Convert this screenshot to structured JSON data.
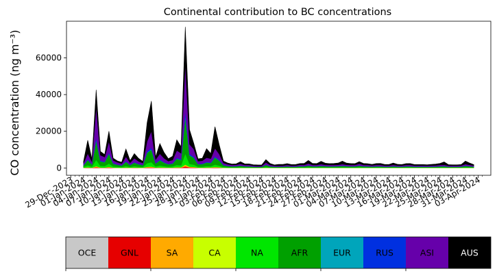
{
  "chart_data": {
    "type": "area",
    "stacked": true,
    "title": "Continental contribution to BC concentrations",
    "ylabel": "CO concentration (ng m⁻³)",
    "xlabel": "",
    "ylim": [
      -4000,
      80000
    ],
    "xlim": [
      "2023-12-28",
      "2024-04-06"
    ],
    "x_tick_labels": [
      "29-Dec-2023",
      "01-Jan-2024",
      "04-Jan-2024",
      "07-Jan-2024",
      "10-Jan-2024",
      "13-Jan-2024",
      "16-Jan-2024",
      "19-Jan-2024",
      "22-Jan-2024",
      "25-Jan-2024",
      "28-Jan-2024",
      "31-Jan-2024",
      "03-Feb-2024",
      "06-Feb-2024",
      "09-Feb-2024",
      "12-Feb-2024",
      "15-Feb-2024",
      "18-Feb-2024",
      "21-Feb-2024",
      "24-Feb-2024",
      "27-Feb-2024",
      "01-Mar-2024",
      "04-Mar-2024",
      "07-Mar-2024",
      "10-Mar-2024",
      "13-Mar-2024",
      "16-Mar-2024",
      "19-Mar-2024",
      "22-Mar-2024",
      "25-Mar-2024",
      "28-Mar-2024",
      "31-Mar-2024",
      "03-Apr-2024"
    ],
    "y_ticks": [
      0,
      20000,
      40000,
      60000
    ],
    "y_tick_labels": [
      "0",
      "20000",
      "40000",
      "60000"
    ],
    "x": [
      "2024-01-01",
      "2024-01-02",
      "2024-01-03",
      "2024-01-04",
      "2024-01-05",
      "2024-01-06",
      "2024-01-07",
      "2024-01-08",
      "2024-01-09",
      "2024-01-10",
      "2024-01-11",
      "2024-01-12",
      "2024-01-13",
      "2024-01-14",
      "2024-01-15",
      "2024-01-16",
      "2024-01-17",
      "2024-01-18",
      "2024-01-19",
      "2024-01-20",
      "2024-01-21",
      "2024-01-22",
      "2024-01-23",
      "2024-01-24",
      "2024-01-25",
      "2024-01-26",
      "2024-01-27",
      "2024-01-28",
      "2024-01-29",
      "2024-01-30",
      "2024-01-31",
      "2024-02-01",
      "2024-02-02",
      "2024-02-03",
      "2024-02-04",
      "2024-02-05",
      "2024-02-06",
      "2024-02-07",
      "2024-02-08",
      "2024-02-09",
      "2024-02-10",
      "2024-02-11",
      "2024-02-12",
      "2024-02-13",
      "2024-02-14",
      "2024-02-15",
      "2024-02-16",
      "2024-02-17",
      "2024-02-18",
      "2024-02-19",
      "2024-02-20",
      "2024-02-21",
      "2024-02-22",
      "2024-02-23",
      "2024-02-24",
      "2024-02-25",
      "2024-02-26",
      "2024-02-27",
      "2024-02-28",
      "2024-02-29",
      "2024-03-01",
      "2024-03-02",
      "2024-03-03",
      "2024-03-04",
      "2024-03-05",
      "2024-03-06",
      "2024-03-07",
      "2024-03-08",
      "2024-03-09",
      "2024-03-10",
      "2024-03-11",
      "2024-03-12",
      "2024-03-13",
      "2024-03-14",
      "2024-03-15",
      "2024-03-16",
      "2024-03-17",
      "2024-03-18",
      "2024-03-19",
      "2024-03-20",
      "2024-03-21",
      "2024-03-22",
      "2024-03-23",
      "2024-03-24",
      "2024-03-25",
      "2024-03-26",
      "2024-03-27",
      "2024-03-28",
      "2024-03-29",
      "2024-03-30",
      "2024-03-31",
      "2024-04-01",
      "2024-04-02"
    ],
    "series": [
      {
        "name": "OCE",
        "color": "#c8c8c8",
        "values": [
          20,
          20,
          20,
          20,
          20,
          20,
          20,
          20,
          20,
          20,
          20,
          20,
          20,
          20,
          20,
          20,
          20,
          20,
          20,
          20,
          20,
          20,
          20,
          20,
          20,
          20,
          20,
          20,
          20,
          20,
          20,
          20,
          20,
          20,
          20,
          20,
          20,
          20,
          20,
          20,
          20,
          20,
          20,
          20,
          20,
          20,
          20,
          20,
          20,
          20,
          20,
          20,
          20,
          20,
          20,
          20,
          20,
          20,
          20,
          20,
          20,
          20,
          20,
          20,
          20,
          20,
          20,
          20,
          20,
          20,
          20,
          20,
          20,
          20,
          20,
          20,
          20,
          20,
          20,
          20,
          20,
          20,
          20,
          20,
          20,
          20,
          20,
          20,
          20,
          20,
          20,
          20,
          20
        ]
      },
      {
        "name": "GNL",
        "color": "#e60000",
        "values": [
          60,
          150,
          70,
          400,
          100,
          90,
          260,
          80,
          60,
          50,
          130,
          60,
          120,
          80,
          60,
          250,
          320,
          90,
          150,
          110,
          80,
          90,
          180,
          150,
          800,
          260,
          220,
          80,
          80,
          120,
          110,
          230,
          160,
          60,
          50,
          40,
          40,
          60,
          40,
          40,
          30,
          30,
          30,
          80,
          40,
          30,
          30,
          30,
          40,
          30,
          30,
          40,
          40,
          60,
          40,
          40,
          50,
          40,
          40,
          40,
          40,
          50,
          40,
          40,
          40,
          60,
          40,
          40,
          30,
          40,
          40,
          30,
          30,
          40,
          30,
          30,
          40,
          40,
          30,
          30,
          30,
          30,
          30,
          30,
          40,
          40,
          30,
          30,
          30,
          30,
          50,
          40,
          30
        ]
      },
      {
        "name": "SA",
        "color": "#ffaa00",
        "values": [
          80,
          180,
          90,
          500,
          120,
          110,
          300,
          100,
          80,
          60,
          150,
          80,
          140,
          100,
          80,
          300,
          380,
          110,
          180,
          130,
          100,
          110,
          220,
          180,
          900,
          320,
          260,
          100,
          100,
          140,
          130,
          270,
          190,
          80,
          60,
          50,
          50,
          70,
          50,
          50,
          40,
          40,
          40,
          90,
          50,
          40,
          40,
          40,
          50,
          40,
          40,
          50,
          50,
          70,
          50,
          50,
          60,
          50,
          50,
          50,
          50,
          60,
          50,
          50,
          50,
          70,
          50,
          50,
          40,
          50,
          50,
          40,
          40,
          50,
          40,
          40,
          50,
          50,
          40,
          40,
          40,
          40,
          40,
          40,
          50,
          50,
          40,
          40,
          40,
          40,
          60,
          50,
          40
        ]
      },
      {
        "name": "CA",
        "color": "#c8ff00",
        "values": [
          10,
          30,
          10,
          80,
          20,
          15,
          50,
          15,
          10,
          10,
          25,
          10,
          20,
          15,
          10,
          50,
          60,
          15,
          30,
          20,
          15,
          15,
          35,
          30,
          150,
          50,
          40,
          15,
          15,
          20,
          20,
          45,
          30,
          10,
          10,
          10,
          10,
          10,
          10,
          10,
          5,
          5,
          5,
          15,
          10,
          5,
          5,
          5,
          10,
          5,
          5,
          10,
          10,
          10,
          10,
          10,
          10,
          10,
          10,
          10,
          10,
          10,
          10,
          10,
          10,
          10,
          10,
          10,
          5,
          10,
          10,
          5,
          5,
          10,
          5,
          5,
          10,
          10,
          5,
          5,
          5,
          5,
          5,
          5,
          10,
          10,
          5,
          5,
          5,
          5,
          10,
          10,
          5
        ]
      },
      {
        "name": "NA",
        "color": "#00e600",
        "values": [
          400,
          1100,
          500,
          3500,
          900,
          800,
          1800,
          600,
          450,
          350,
          800,
          400,
          700,
          500,
          400,
          2000,
          2400,
          600,
          1000,
          700,
          500,
          600,
          1200,
          1000,
          6000,
          1600,
          1300,
          500,
          500,
          700,
          650,
          1300,
          900,
          350,
          250,
          200,
          220,
          280,
          200,
          200,
          150,
          140,
          140,
          380,
          200,
          150,
          150,
          150,
          200,
          150,
          160,
          220,
          200,
          300,
          200,
          200,
          260,
          210,
          200,
          200,
          220,
          260,
          220,
          200,
          200,
          280,
          200,
          200,
          170,
          200,
          200,
          160,
          160,
          210,
          170,
          160,
          200,
          200,
          160,
          160,
          160,
          150,
          160,
          170,
          200,
          220,
          150,
          150,
          150,
          160,
          260,
          210,
          160
        ]
      },
      {
        "name": "AFR",
        "color": "#00a000",
        "values": [
          900,
          2800,
          1200,
          10500,
          2400,
          2100,
          5200,
          1500,
          1100,
          850,
          2200,
          1000,
          1900,
          1300,
          950,
          5600,
          6800,
          1600,
          2800,
          1900,
          1300,
          1500,
          3400,
          2900,
          20000,
          4600,
          3700,
          1300,
          1400,
          2000,
          1800,
          3800,
          2700,
          950,
          700,
          550,
          600,
          780,
          550,
          550,
          420,
          380,
          380,
          1050,
          560,
          420,
          400,
          420,
          560,
          420,
          450,
          600,
          560,
          850,
          560,
          560,
          720,
          580,
          560,
          560,
          600,
          720,
          600,
          560,
          560,
          800,
          560,
          560,
          480,
          560,
          560,
          450,
          450,
          580,
          470,
          450,
          560,
          560,
          450,
          450,
          450,
          420,
          450,
          480,
          560,
          600,
          420,
          420,
          420,
          450,
          720,
          580,
          450
        ]
      },
      {
        "name": "EUR",
        "color": "#00a5bb",
        "values": [
          30,
          80,
          40,
          300,
          70,
          60,
          150,
          45,
          35,
          25,
          65,
          30,
          55,
          40,
          30,
          160,
          200,
          45,
          80,
          55,
          40,
          45,
          100,
          85,
          550,
          130,
          110,
          40,
          40,
          60,
          50,
          110,
          80,
          30,
          20,
          15,
          15,
          20,
          15,
          15,
          10,
          10,
          10,
          30,
          15,
          10,
          10,
          10,
          15,
          10,
          10,
          15,
          15,
          25,
          15,
          15,
          20,
          15,
          15,
          15,
          15,
          20,
          15,
          15,
          15,
          20,
          15,
          15,
          10,
          15,
          15,
          10,
          10,
          15,
          10,
          10,
          15,
          15,
          10,
          10,
          10,
          10,
          10,
          10,
          15,
          15,
          10,
          10,
          10,
          10,
          20,
          15,
          10
        ]
      },
      {
        "name": "RUS",
        "color": "#0030e0",
        "values": [
          120,
          350,
          150,
          1300,
          300,
          260,
          650,
          190,
          140,
          110,
          280,
          130,
          240,
          170,
          120,
          700,
          850,
          200,
          350,
          240,
          170,
          190,
          430,
          370,
          2500,
          580,
          460,
          170,
          180,
          250,
          230,
          480,
          340,
          120,
          90,
          70,
          75,
          100,
          70,
          70,
          55,
          50,
          50,
          130,
          70,
          55,
          50,
          55,
          70,
          55,
          55,
          75,
          70,
          110,
          70,
          70,
          90,
          75,
          70,
          70,
          75,
          90,
          75,
          70,
          70,
          100,
          70,
          70,
          60,
          70,
          70,
          55,
          55,
          75,
          60,
          55,
          70,
          70,
          55,
          55,
          55,
          55,
          55,
          60,
          70,
          75,
          55,
          55,
          55,
          55,
          90,
          75,
          55
        ]
      },
      {
        "name": "ASI",
        "color": "#6600aa",
        "values": [
          900,
          3200,
          1300,
          17000,
          3000,
          2500,
          6000,
          1600,
          1200,
          900,
          2500,
          1100,
          2100,
          1400,
          1000,
          5500,
          9000,
          1900,
          3200,
          2100,
          1500,
          1800,
          4000,
          3300,
          26000,
          5300,
          4200,
          1500,
          1600,
          2300,
          2100,
          4500,
          3200,
          1100,
          800,
          650,
          700,
          900,
          650,
          650,
          500,
          450,
          450,
          1200,
          650,
          500,
          480,
          500,
          650,
          500,
          520,
          700,
          650,
          1000,
          650,
          650,
          850,
          680,
          650,
          650,
          700,
          850,
          700,
          650,
          650,
          950,
          650,
          650,
          560,
          650,
          650,
          520,
          520,
          680,
          550,
          520,
          650,
          650,
          520,
          520,
          520,
          500,
          520,
          560,
          650,
          700,
          500,
          500,
          500,
          520,
          850,
          680,
          520
        ]
      },
      {
        "name": "AUS",
        "color": "#000000",
        "values": [
          980,
          7200,
          1540,
          9010,
          2100,
          1370,
          5600,
          1170,
          735,
          745,
          4195,
          1190,
          2525,
          1585,
          870,
          10090,
          16495,
          1440,
          5500,
          3155,
          1295,
          2045,
          5795,
          3575,
          20000,
          7950,
          3075,
          1270,
          1345,
          4900,
          2760,
          11745,
          5005,
          1025,
          720,
          560,
          525,
          1190,
          645,
          645,
          550,
          535,
          500,
          1545,
          795,
          435,
          805,
          690,
          755,
          640,
          625,
          690,
          845,
          1655,
          845,
          790,
          1545,
          920,
          785,
          845,
          945,
          1645,
          945,
          790,
          785,
          1105,
          835,
          745,
          605,
          790,
          830,
          610,
          605,
          990,
          655,
          565,
          785,
          825,
          570,
          565,
          565,
          535,
          640,
          760,
          845,
          1590,
          600,
          480,
          480,
          575,
          1700,
          1025,
          545
        ]
      }
    ]
  },
  "legend": {
    "items": [
      {
        "label": "OCE",
        "color": "#c8c8c8",
        "text_color": "#000000"
      },
      {
        "label": "GNL",
        "color": "#e60000",
        "text_color": "#000000"
      },
      {
        "label": "SA",
        "color": "#ffaa00",
        "text_color": "#000000"
      },
      {
        "label": "CA",
        "color": "#c8ff00",
        "text_color": "#000000"
      },
      {
        "label": "NA",
        "color": "#00e600",
        "text_color": "#000000"
      },
      {
        "label": "AFR",
        "color": "#00a000",
        "text_color": "#000000"
      },
      {
        "label": "EUR",
        "color": "#00a5bb",
        "text_color": "#000000"
      },
      {
        "label": "RUS",
        "color": "#0030e0",
        "text_color": "#000000"
      },
      {
        "label": "ASI",
        "color": "#6600aa",
        "text_color": "#000000"
      },
      {
        "label": "AUS",
        "color": "#000000",
        "text_color": "#ffffff"
      }
    ]
  }
}
